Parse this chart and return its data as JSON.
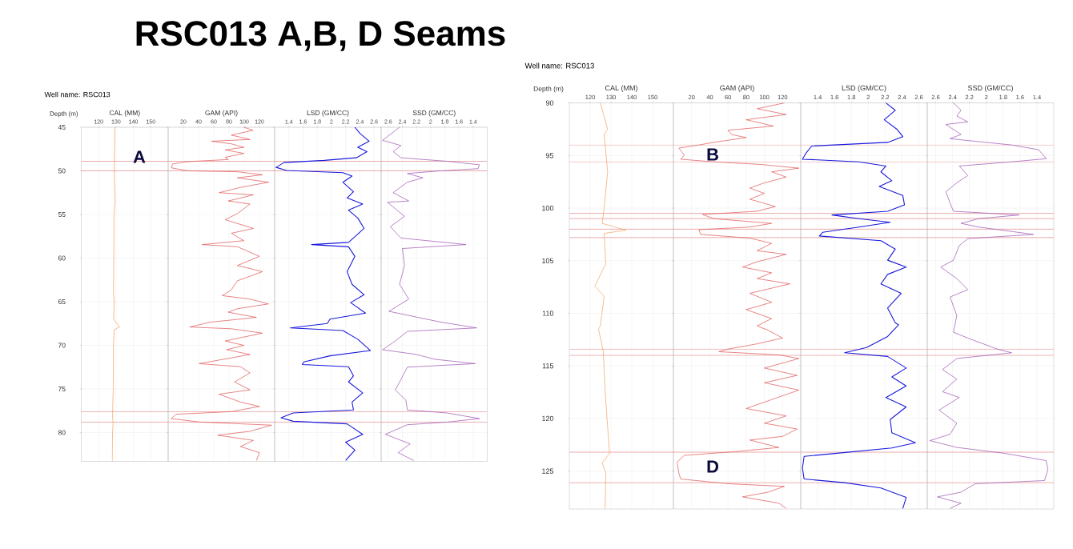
{
  "chart_data": [
    {
      "type": "line",
      "title": "RSC013 A,B, D Seams",
      "subtitle": "Well name:  RSC013",
      "xlabel": "CAL (MM)",
      "ylabel": "Depth (m)",
      "xlim": [
        110,
        160
      ],
      "xticks": [
        120,
        130,
        140,
        150
      ],
      "ylim": [
        83.3,
        45
      ],
      "yticks": [
        45,
        50,
        55,
        60,
        65,
        70,
        75,
        80
      ],
      "grid": true,
      "series": [
        {
          "color": "#f0a060",
          "x": [
            129.4,
            129.2,
            128.9,
            129.5,
            128.8,
            128.7,
            128.5,
            129,
            128.6,
            132,
            129,
            128.5,
            128.4,
            128,
            128.3,
            128,
            127.8
          ],
          "values": [
            45,
            47,
            50,
            53.5,
            55,
            60,
            64,
            65,
            67,
            67.9,
            68.2,
            70,
            75,
            78,
            79,
            80,
            83.3
          ]
        }
      ],
      "ref_lines": [
        {
          "axis": "y",
          "value": 48.9,
          "color": "#e8a0a0"
        },
        {
          "axis": "y",
          "value": 50.0,
          "color": "#e8a0a0"
        },
        {
          "axis": "y",
          "value": 77.6,
          "color": "#e8a0a0"
        },
        {
          "axis": "y",
          "value": 78.8,
          "color": "#e8a0a0"
        }
      ],
      "annotations": [
        "A"
      ]
    },
    {
      "type": "line",
      "xlabel": "GAM (API)",
      "xlim": [
        0,
        140
      ],
      "xticks": [
        20,
        40,
        60,
        80,
        100,
        120
      ],
      "ylim": [
        83.3,
        45
      ],
      "yticks": [
        45,
        50,
        55,
        60,
        65,
        70,
        75,
        80
      ],
      "grid": true,
      "tick_labels": "x",
      "series": [
        {
          "color": "#e05050",
          "x": [
            99.5,
            111.6,
            83,
            107.6,
            56.8,
            83,
            99.5,
            75,
            99.5,
            75,
            79,
            26,
            6,
            4,
            26,
            91,
            124,
            91,
            132,
            95,
            67,
            112,
            79,
            107.6,
            91,
            75,
            112,
            83,
            99.5,
            44.7,
            91,
            120,
            91,
            124,
            91,
            83,
            71,
            107.6,
            132,
            91,
            79,
            116,
            54.8,
            28.4,
            83,
            124,
            75,
            99.5,
            77,
            107.6,
            40.6,
            95,
            107.6,
            87.3,
            107.6,
            67,
            95,
            120,
            83,
            10,
            4,
            42.6,
            136,
            107.6,
            65,
            112,
            95,
            120,
            116
          ],
          "values": [
            45.0,
            45.35,
            45.9,
            46.4,
            46.6,
            46.9,
            47.3,
            47.6,
            48.0,
            48.45,
            48.7,
            48.94,
            49.2,
            49.65,
            50.0,
            50.1,
            50.45,
            50.8,
            51.3,
            51.9,
            52.5,
            52.75,
            53.45,
            53.8,
            54.9,
            55.6,
            56.6,
            57.15,
            58.0,
            58.45,
            58.7,
            59.8,
            60.85,
            61.55,
            62.6,
            63.65,
            64.3,
            64.7,
            65.25,
            65.8,
            66.2,
            66.8,
            67.35,
            67.9,
            68.1,
            68.6,
            69.5,
            70.0,
            70.5,
            71.05,
            72.1,
            72.45,
            73.15,
            74.2,
            75.1,
            75.6,
            76.5,
            77.0,
            77.6,
            77.9,
            78.4,
            78.8,
            79.15,
            79.85,
            80.3,
            80.9,
            81.6,
            82.3,
            83.2
          ]
        }
      ],
      "ref_lines": [
        {
          "axis": "y",
          "value": 48.9,
          "color": "#e8a0a0"
        },
        {
          "axis": "y",
          "value": 50.0,
          "color": "#e8a0a0"
        },
        {
          "axis": "y",
          "value": 77.6,
          "color": "#e8a0a0"
        },
        {
          "axis": "y",
          "value": 78.8,
          "color": "#e8a0a0"
        }
      ]
    },
    {
      "type": "line",
      "xlabel": "LSD (GM/CC)",
      "xlim": [
        1.2,
        2.7
      ],
      "xticks": [
        1.4,
        1.6,
        1.8,
        2,
        2.2,
        2.4,
        2.6
      ],
      "ylim": [
        83.3,
        45
      ],
      "yticks": [
        45,
        50,
        55,
        60,
        65,
        70,
        75,
        80
      ],
      "grid": true,
      "tick_labels": "x",
      "series": [
        {
          "color": "#1a1adc",
          "x": [
            2.33,
            2.4,
            2.53,
            2.37,
            2.5,
            2.35,
            1.9,
            1.33,
            1.22,
            1.37,
            2.16,
            2.29,
            2.16,
            2.31,
            2.22,
            2.44,
            2.24,
            2.37,
            2.46,
            2.31,
            2.24,
            1.72,
            2.24,
            2.33,
            2.22,
            2.29,
            2.46,
            2.27,
            2.48,
            1.98,
            1.94,
            1.42,
            2.16,
            2.37,
            2.55,
            1.98,
            1.61,
            1.59,
            2.24,
            2.31,
            2.24,
            2.44,
            2.29,
            2.31,
            1.46,
            1.29,
            1.46,
            2.22,
            2.44,
            2.2,
            2.33,
            2.2
          ],
          "values": [
            45.0,
            45.7,
            46.6,
            47.3,
            47.8,
            48.5,
            48.8,
            49.05,
            49.6,
            49.95,
            50.2,
            50.6,
            51.3,
            52.4,
            53.1,
            53.8,
            54.5,
            55.4,
            56.6,
            57.7,
            58.2,
            58.45,
            58.7,
            59.8,
            61.55,
            63.0,
            64.2,
            65.1,
            66.3,
            67.0,
            67.5,
            68.0,
            68.3,
            69.3,
            70.6,
            71.2,
            71.9,
            72.2,
            72.45,
            73.5,
            74.2,
            75.45,
            76.5,
            77.4,
            77.75,
            78.3,
            78.7,
            79.0,
            80.2,
            81.1,
            82.0,
            83.2
          ]
        }
      ],
      "ref_lines": [
        {
          "axis": "y",
          "value": 48.9,
          "color": "#e8a0a0"
        },
        {
          "axis": "y",
          "value": 50.0,
          "color": "#e8a0a0"
        },
        {
          "axis": "y",
          "value": 77.6,
          "color": "#e8a0a0"
        },
        {
          "axis": "y",
          "value": 78.8,
          "color": "#e8a0a0"
        }
      ]
    },
    {
      "type": "line",
      "xlabel": "SSD (GM/CC)",
      "xlim": [
        2.7,
        1.2
      ],
      "xticks": [
        2.6,
        2.4,
        2.2,
        2,
        1.8,
        1.6,
        1.4
      ],
      "ylim": [
        83.3,
        45
      ],
      "yticks": [
        45,
        50,
        55,
        60,
        65,
        70,
        75,
        80
      ],
      "grid": true,
      "tick_labels": "x",
      "series": [
        {
          "color": "#9b4fb0",
          "x": [
            2.44,
            2.68,
            2.42,
            2.53,
            2.42,
            1.77,
            1.31,
            1.33,
            1.86,
            2.33,
            2.11,
            2.33,
            2.53,
            2.31,
            2.61,
            2.37,
            2.57,
            2.42,
            1.5,
            2.4,
            2.37,
            2.44,
            2.31,
            2.59,
            1.85,
            1.35,
            2.33,
            2.5,
            2.68,
            2.2,
            1.94,
            1.37,
            2.33,
            2.42,
            2.5,
            2.35,
            2.33,
            1.77,
            1.31,
            1.77,
            2.33,
            2.64,
            2.29,
            2.46,
            2.24
          ],
          "values": [
            45.0,
            46.5,
            47.1,
            47.8,
            48.5,
            48.9,
            49.3,
            49.75,
            50.0,
            50.3,
            50.8,
            51.3,
            52.5,
            53.45,
            53.6,
            55.2,
            56.4,
            57.7,
            58.45,
            58.9,
            60.85,
            63.0,
            64.7,
            66.1,
            67.35,
            68.0,
            68.4,
            69.5,
            70.5,
            71.05,
            71.6,
            72.1,
            72.5,
            73.9,
            75.1,
            76.3,
            77.4,
            77.75,
            78.4,
            78.8,
            79.1,
            80.2,
            81.3,
            82.3,
            83.2
          ]
        }
      ],
      "ref_lines": [
        {
          "axis": "y",
          "value": 48.9,
          "color": "#e8a0a0"
        },
        {
          "axis": "y",
          "value": 50.0,
          "color": "#e8a0a0"
        },
        {
          "axis": "y",
          "value": 77.6,
          "color": "#e8a0a0"
        },
        {
          "axis": "y",
          "value": 78.8,
          "color": "#e8a0a0"
        }
      ]
    },
    {
      "type": "line",
      "subtitle": "Well name:  RSC013",
      "xlabel": "CAL (MM)",
      "ylabel": "Depth (m)",
      "xlim": [
        110,
        160
      ],
      "xticks": [
        120,
        130,
        140,
        150
      ],
      "ylim": [
        128.6,
        90
      ],
      "yticks": [
        90,
        95,
        100,
        105,
        110,
        115,
        120,
        125
      ],
      "grid": true,
      "series": [
        {
          "color": "#f0a060",
          "x": [
            124.9,
            128.4,
            126.7,
            128.4,
            126.7,
            125.8,
            137.2,
            126.7,
            127.5,
            122.3,
            126.7,
            124.9,
            124,
            126.3,
            127.2,
            129.3,
            125.8,
            127.5,
            127.2
          ],
          "values": [
            90,
            92.5,
            93.0,
            96.55,
            100,
            101.45,
            102.1,
            102.4,
            105.3,
            107.4,
            108.4,
            111.2,
            111.5,
            113.6,
            117.5,
            123.3,
            124.2,
            125.2,
            128.55
          ]
        }
      ],
      "ref_lines": [
        {
          "axis": "y",
          "value": 94.0,
          "color": "#e8a0a0"
        },
        {
          "axis": "y",
          "value": 95.6,
          "color": "#e8a0a0"
        },
        {
          "axis": "y",
          "value": 100.5,
          "color": "#e8a0a0"
        },
        {
          "axis": "y",
          "value": 101.0,
          "color": "#e8a0a0"
        },
        {
          "axis": "y",
          "value": 102.0,
          "color": "#e8a0a0"
        },
        {
          "axis": "y",
          "value": 102.8,
          "color": "#e8a0a0"
        },
        {
          "axis": "y",
          "value": 113.4,
          "color": "#e8a0a0"
        },
        {
          "axis": "y",
          "value": 114.0,
          "color": "#e8a0a0"
        },
        {
          "axis": "y",
          "value": 123.2,
          "color": "#e8a0a0"
        },
        {
          "axis": "y",
          "value": 126.1,
          "color": "#e8a0a0"
        }
      ]
    },
    {
      "type": "line",
      "xlabel": "GAM (API)",
      "xlim": [
        0,
        140
      ],
      "xticks": [
        20,
        40,
        60,
        80,
        100,
        120
      ],
      "ylim": [
        128.6,
        90
      ],
      "yticks": [
        90,
        95,
        100,
        105,
        110,
        115,
        120,
        125
      ],
      "grid": true,
      "tick_labels": "x",
      "series": [
        {
          "color": "#e05050",
          "x": [
            122,
            92,
            124,
            80,
            110,
            60,
            64,
            80,
            44,
            28,
            6,
            12,
            8,
            44,
            96,
            138,
            108,
            124,
            100,
            84,
            100,
            84,
            112,
            92,
            32,
            44,
            108,
            84,
            28,
            30,
            84,
            108,
            92,
            124,
            92,
            76,
            108,
            92,
            128,
            84,
            108,
            80,
            108,
            92,
            104,
            120,
            92,
            60,
            50,
            116,
            138,
            100,
            136,
            100,
            138,
            108,
            80,
            124,
            100,
            136,
            120,
            84,
            116,
            68,
            12,
            4,
            6,
            8,
            60,
            122,
            104,
            76,
            116,
            124
          ],
          "values": [
            90,
            90.55,
            91.1,
            91.6,
            92.2,
            92.6,
            93.0,
            93.3,
            93.75,
            94.0,
            94.3,
            94.97,
            95.35,
            95.6,
            95.85,
            96.2,
            96.55,
            97.05,
            97.6,
            98.1,
            98.6,
            99.15,
            99.85,
            100.3,
            100.6,
            101.0,
            101.45,
            101.8,
            102.05,
            102.5,
            102.85,
            103.35,
            104.05,
            104.4,
            105.1,
            105.6,
            106.15,
            106.7,
            107.2,
            108.1,
            108.95,
            109.65,
            110.5,
            111.2,
            111.6,
            112.35,
            112.9,
            113.4,
            113.65,
            113.95,
            114.3,
            115.2,
            115.9,
            116.6,
            117.3,
            118.2,
            119.05,
            119.75,
            120.45,
            121.0,
            121.7,
            122.05,
            122.75,
            123.15,
            123.5,
            124.15,
            125.2,
            125.75,
            126.2,
            126.45,
            127.0,
            127.45,
            128.05,
            128.55
          ]
        }
      ],
      "ref_lines": [
        {
          "axis": "y",
          "value": 94.0,
          "color": "#e8a0a0"
        },
        {
          "axis": "y",
          "value": 95.6,
          "color": "#e8a0a0"
        },
        {
          "axis": "y",
          "value": 100.5,
          "color": "#e8a0a0"
        },
        {
          "axis": "y",
          "value": 101.0,
          "color": "#e8a0a0"
        },
        {
          "axis": "y",
          "value": 102.0,
          "color": "#e8a0a0"
        },
        {
          "axis": "y",
          "value": 102.8,
          "color": "#e8a0a0"
        },
        {
          "axis": "y",
          "value": 113.4,
          "color": "#e8a0a0"
        },
        {
          "axis": "y",
          "value": 114.0,
          "color": "#e8a0a0"
        },
        {
          "axis": "y",
          "value": 123.2,
          "color": "#e8a0a0"
        },
        {
          "axis": "y",
          "value": 126.1,
          "color": "#e8a0a0"
        }
      ],
      "annotations": [
        "B",
        "D"
      ]
    },
    {
      "type": "line",
      "xlabel": "LSD (GM/CC)",
      "xlim": [
        1.2,
        2.7
      ],
      "xticks": [
        1.4,
        1.6,
        1.8,
        2,
        2.2,
        2.4,
        2.6
      ],
      "ylim": [
        128.6,
        90
      ],
      "yticks": [
        90,
        95,
        100,
        105,
        110,
        115,
        120,
        125
      ],
      "grid": true,
      "tick_labels": "x",
      "series": [
        {
          "color": "#1a1adc",
          "x": [
            2.21,
            2.32,
            2.19,
            2.34,
            2.41,
            2.23,
            1.33,
            1.26,
            1.22,
            1.89,
            2.21,
            2.15,
            2.28,
            2.13,
            2.41,
            2.43,
            2.23,
            1.57,
            1.89,
            2.26,
            1.89,
            1.46,
            1.42,
            2.15,
            2.32,
            2.23,
            2.45,
            2.23,
            2.15,
            2.39,
            2.23,
            2.32,
            2.36,
            2.23,
            1.98,
            1.72,
            2.23,
            2.45,
            2.28,
            2.45,
            2.21,
            2.45,
            2.26,
            2.28,
            2.56,
            2.28,
            1.63,
            1.24,
            1.22,
            1.24,
            1.72,
            2.15,
            2.45,
            2.41
          ],
          "values": [
            90,
            90.7,
            91.6,
            92.5,
            93.2,
            93.75,
            94.1,
            94.8,
            95.35,
            95.6,
            96.0,
            96.55,
            97.4,
            97.95,
            98.8,
            99.7,
            100.3,
            100.65,
            101.0,
            101.35,
            101.8,
            102.3,
            102.65,
            103.1,
            103.9,
            104.95,
            105.6,
            106.3,
            107.2,
            108.1,
            109.5,
            110.9,
            111.1,
            112.2,
            113.25,
            113.75,
            114.1,
            115.2,
            116.05,
            116.9,
            118.0,
            118.9,
            120.1,
            121.35,
            122.3,
            122.8,
            123.3,
            123.6,
            124.7,
            125.75,
            126.1,
            126.6,
            127.5,
            128.55
          ]
        }
      ],
      "ref_lines": [
        {
          "axis": "y",
          "value": 94.0,
          "color": "#e8a0a0"
        },
        {
          "axis": "y",
          "value": 95.6,
          "color": "#e8a0a0"
        },
        {
          "axis": "y",
          "value": 100.5,
          "color": "#e8a0a0"
        },
        {
          "axis": "y",
          "value": 101.0,
          "color": "#e8a0a0"
        },
        {
          "axis": "y",
          "value": 102.0,
          "color": "#e8a0a0"
        },
        {
          "axis": "y",
          "value": 102.8,
          "color": "#e8a0a0"
        },
        {
          "axis": "y",
          "value": 113.4,
          "color": "#e8a0a0"
        },
        {
          "axis": "y",
          "value": 114.0,
          "color": "#e8a0a0"
        },
        {
          "axis": "y",
          "value": 123.2,
          "color": "#e8a0a0"
        },
        {
          "axis": "y",
          "value": 126.1,
          "color": "#e8a0a0"
        }
      ]
    },
    {
      "type": "line",
      "xlabel": "SSD (GM/CC)",
      "xlim": [
        2.7,
        1.2
      ],
      "xticks": [
        2.6,
        2.4,
        2.2,
        2,
        1.8,
        1.6,
        1.4
      ],
      "ylim": [
        128.6,
        90
      ],
      "yticks": [
        90,
        95,
        100,
        105,
        110,
        115,
        120,
        125
      ],
      "grid": true,
      "tick_labels": "x",
      "series": [
        {
          "color": "#9b4fb0",
          "x": [
            2.39,
            2.3,
            2.35,
            2.22,
            2.48,
            2.3,
            2.43,
            1.7,
            1.38,
            1.29,
            1.7,
            2.32,
            2.22,
            2.35,
            2.48,
            2.43,
            2.39,
            1.61,
            2.09,
            2.3,
            2.09,
            1.44,
            2.22,
            2.32,
            2.39,
            2.54,
            2.35,
            2.22,
            2.43,
            2.35,
            2.39,
            2.22,
            1.87,
            1.7,
            2.35,
            2.52,
            2.35,
            2.52,
            2.32,
            2.56,
            2.35,
            2.43,
            2.67,
            2.35,
            1.79,
            1.29,
            1.27,
            1.31,
            2.13,
            2.3,
            2.58,
            2.3,
            2.43
          ],
          "values": [
            90,
            90.7,
            91.25,
            91.8,
            92.05,
            93.0,
            93.4,
            94.0,
            94.45,
            95.3,
            95.6,
            96.0,
            96.9,
            97.6,
            98.45,
            99.5,
            100.3,
            100.65,
            101.0,
            101.45,
            101.8,
            102.5,
            102.9,
            103.55,
            104.95,
            105.6,
            106.7,
            107.75,
            108.45,
            110.2,
            111.8,
            112.35,
            113.4,
            113.75,
            114.3,
            115.35,
            116.25,
            117.45,
            118.0,
            119.2,
            120.45,
            121.5,
            122.1,
            122.75,
            123.3,
            124.0,
            124.85,
            125.9,
            126.2,
            127.0,
            127.45,
            128.05,
            128.55
          ]
        }
      ],
      "ref_lines": [
        {
          "axis": "y",
          "value": 94.0,
          "color": "#e8a0a0"
        },
        {
          "axis": "y",
          "value": 95.6,
          "color": "#e8a0a0"
        },
        {
          "axis": "y",
          "value": 100.5,
          "color": "#e8a0a0"
        },
        {
          "axis": "y",
          "value": 101.0,
          "color": "#e8a0a0"
        },
        {
          "axis": "y",
          "value": 102.0,
          "color": "#e8a0a0"
        },
        {
          "axis": "y",
          "value": 102.8,
          "color": "#e8a0a0"
        },
        {
          "axis": "y",
          "value": 113.4,
          "color": "#e8a0a0"
        },
        {
          "axis": "y",
          "value": 114.0,
          "color": "#e8a0a0"
        },
        {
          "axis": "y",
          "value": 123.2,
          "color": "#e8a0a0"
        },
        {
          "axis": "y",
          "value": 126.1,
          "color": "#e8a0a0"
        }
      ]
    }
  ]
}
